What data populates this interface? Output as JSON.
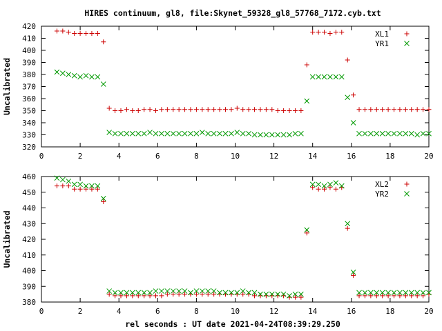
{
  "title": "HIRES continuum, gl8, file:Skynet_59328_gl8_57768_7172.cyb.txt",
  "xlabel": "rel seconds : UT date 2021-04-24T08:39:29.250",
  "chart_data": [
    {
      "type": "scatter",
      "ylabel": "Uncalibrated",
      "xlim": [
        0,
        20
      ],
      "ylim": [
        320,
        420
      ],
      "xticks": [
        0,
        2,
        4,
        6,
        8,
        10,
        12,
        14,
        16,
        18,
        20
      ],
      "yticks": [
        320,
        330,
        340,
        350,
        360,
        370,
        380,
        390,
        400,
        410,
        420
      ],
      "legend_position": "top-right",
      "series": [
        {
          "name": "XL1",
          "marker": "plus",
          "color": "#cc0000",
          "x": [
            0.8,
            1.1,
            1.4,
            1.7,
            2.0,
            2.3,
            2.6,
            2.9,
            3.2,
            3.5,
            3.8,
            4.1,
            4.4,
            4.7,
            5.0,
            5.3,
            5.6,
            5.9,
            6.2,
            6.5,
            6.8,
            7.1,
            7.4,
            7.7,
            8.0,
            8.3,
            8.6,
            8.9,
            9.2,
            9.5,
            9.8,
            10.1,
            10.4,
            10.7,
            11.0,
            11.3,
            11.6,
            11.9,
            12.2,
            12.5,
            12.8,
            13.1,
            13.4,
            13.7,
            14.0,
            14.3,
            14.6,
            14.9,
            15.2,
            15.5,
            15.8,
            16.1,
            16.4,
            16.7,
            17.0,
            17.3,
            17.6,
            17.9,
            18.2,
            18.5,
            18.8,
            19.1,
            19.4,
            19.7,
            20.0
          ],
          "y": [
            416,
            416,
            415,
            414,
            414,
            414,
            414,
            414,
            407,
            352,
            350,
            350,
            351,
            350,
            350,
            351,
            351,
            350,
            351,
            351,
            351,
            351,
            351,
            351,
            351,
            351,
            351,
            351,
            351,
            351,
            351,
            352,
            351,
            351,
            351,
            351,
            351,
            351,
            350,
            350,
            350,
            350,
            350,
            388,
            415,
            415,
            415,
            414,
            415,
            415,
            392,
            363,
            351,
            351,
            351,
            351,
            351,
            351,
            351,
            351,
            351,
            351,
            351,
            351,
            351
          ]
        },
        {
          "name": "YR1",
          "marker": "cross",
          "color": "#009900",
          "x": [
            0.8,
            1.1,
            1.4,
            1.7,
            2.0,
            2.3,
            2.6,
            2.9,
            3.2,
            3.5,
            3.8,
            4.1,
            4.4,
            4.7,
            5.0,
            5.3,
            5.6,
            5.9,
            6.2,
            6.5,
            6.8,
            7.1,
            7.4,
            7.7,
            8.0,
            8.3,
            8.6,
            8.9,
            9.2,
            9.5,
            9.8,
            10.1,
            10.4,
            10.7,
            11.0,
            11.3,
            11.6,
            11.9,
            12.2,
            12.5,
            12.8,
            13.1,
            13.4,
            13.7,
            14.0,
            14.3,
            14.6,
            14.9,
            15.2,
            15.5,
            15.8,
            16.1,
            16.4,
            16.7,
            17.0,
            17.3,
            17.6,
            17.9,
            18.2,
            18.5,
            18.8,
            19.1,
            19.4,
            19.7,
            20.0
          ],
          "y": [
            382,
            381,
            380,
            379,
            378,
            379,
            378,
            378,
            372,
            332,
            331,
            331,
            331,
            331,
            331,
            331,
            332,
            331,
            331,
            331,
            331,
            331,
            331,
            331,
            331,
            332,
            331,
            331,
            331,
            331,
            331,
            332,
            331,
            331,
            330,
            330,
            330,
            330,
            330,
            330,
            330,
            331,
            331,
            358,
            378,
            378,
            378,
            378,
            378,
            378,
            361,
            340,
            331,
            331,
            331,
            331,
            331,
            331,
            331,
            331,
            331,
            331,
            330,
            331,
            331
          ]
        }
      ]
    },
    {
      "type": "scatter",
      "ylabel": "Uncalibrated",
      "xlim": [
        0,
        20
      ],
      "ylim": [
        380,
        460
      ],
      "xticks": [
        0,
        2,
        4,
        6,
        8,
        10,
        12,
        14,
        16,
        18,
        20
      ],
      "yticks": [
        380,
        390,
        400,
        410,
        420,
        430,
        440,
        450,
        460
      ],
      "legend_position": "top-right",
      "series": [
        {
          "name": "XL2",
          "marker": "plus",
          "color": "#cc0000",
          "x": [
            0.8,
            1.1,
            1.4,
            1.7,
            2.0,
            2.3,
            2.6,
            2.9,
            3.2,
            3.5,
            3.8,
            4.1,
            4.4,
            4.7,
            5.0,
            5.3,
            5.6,
            5.9,
            6.2,
            6.5,
            6.8,
            7.1,
            7.4,
            7.7,
            8.0,
            8.3,
            8.6,
            8.9,
            9.2,
            9.5,
            9.8,
            10.1,
            10.4,
            10.7,
            11.0,
            11.3,
            11.6,
            11.9,
            12.2,
            12.5,
            12.8,
            13.1,
            13.4,
            13.7,
            14.0,
            14.3,
            14.6,
            14.9,
            15.2,
            15.5,
            15.8,
            16.1,
            16.4,
            16.7,
            17.0,
            17.3,
            17.6,
            17.9,
            18.2,
            18.5,
            18.8,
            19.1,
            19.4,
            19.7,
            20.0
          ],
          "y": [
            454,
            454,
            454,
            452,
            452,
            452,
            452,
            452,
            444,
            385,
            384,
            384,
            384,
            384,
            384,
            384,
            384,
            384,
            384,
            385,
            385,
            385,
            385,
            385,
            385,
            385,
            385,
            385,
            385,
            385,
            385,
            385,
            385,
            385,
            384,
            384,
            384,
            384,
            384,
            384,
            383,
            383,
            383,
            424,
            453,
            452,
            452,
            453,
            452,
            453,
            427,
            397,
            384,
            384,
            384,
            384,
            384,
            384,
            384,
            384,
            384,
            384,
            384,
            384,
            385
          ]
        },
        {
          "name": "YR2",
          "marker": "cross",
          "color": "#009900",
          "x": [
            0.8,
            1.1,
            1.4,
            1.7,
            2.0,
            2.3,
            2.6,
            2.9,
            3.2,
            3.5,
            3.8,
            4.1,
            4.4,
            4.7,
            5.0,
            5.3,
            5.6,
            5.9,
            6.2,
            6.5,
            6.8,
            7.1,
            7.4,
            7.7,
            8.0,
            8.3,
            8.6,
            8.9,
            9.2,
            9.5,
            9.8,
            10.1,
            10.4,
            10.7,
            11.0,
            11.3,
            11.6,
            11.9,
            12.2,
            12.5,
            12.8,
            13.1,
            13.4,
            13.7,
            14.0,
            14.3,
            14.6,
            14.9,
            15.2,
            15.5,
            15.8,
            16.1,
            16.4,
            16.7,
            17.0,
            17.3,
            17.6,
            17.9,
            18.2,
            18.5,
            18.8,
            19.1,
            19.4,
            19.7,
            20.0
          ],
          "y": [
            459,
            458,
            457,
            455,
            455,
            454,
            454,
            454,
            446,
            387,
            386,
            386,
            386,
            386,
            386,
            386,
            386,
            387,
            387,
            387,
            387,
            387,
            387,
            386,
            387,
            387,
            387,
            387,
            386,
            386,
            386,
            386,
            387,
            386,
            386,
            385,
            385,
            385,
            385,
            385,
            384,
            385,
            385,
            426,
            455,
            455,
            454,
            455,
            456,
            454,
            430,
            399,
            386,
            386,
            386,
            386,
            386,
            386,
            386,
            386,
            386,
            386,
            386,
            386,
            386
          ]
        }
      ]
    }
  ]
}
